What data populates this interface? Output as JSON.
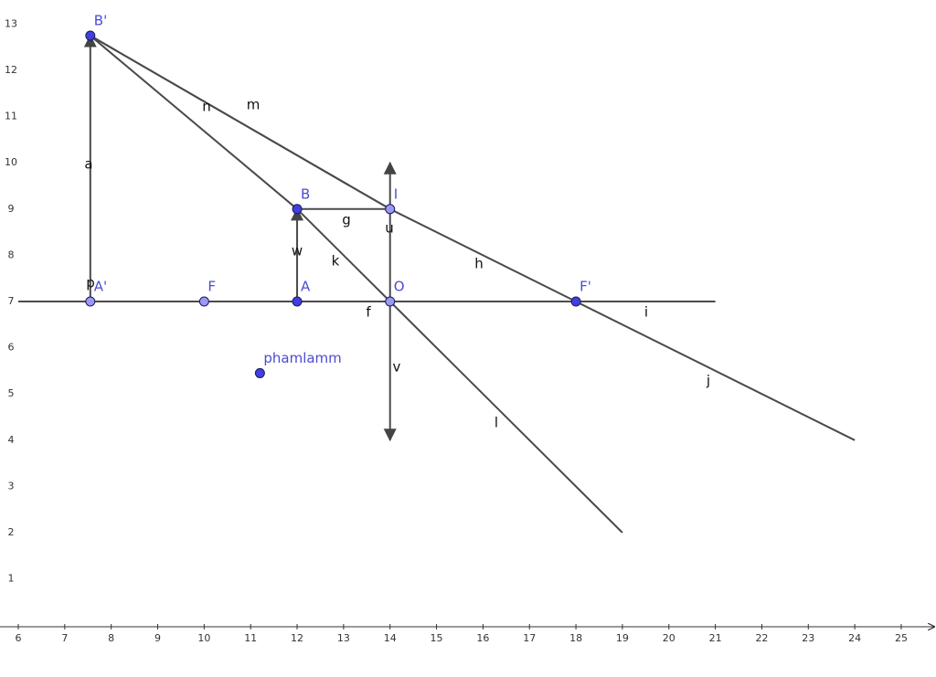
{
  "axes": {
    "xticks": [
      6,
      7,
      8,
      9,
      10,
      11,
      12,
      13,
      14,
      15,
      16,
      17,
      18,
      19,
      20,
      21,
      22,
      23,
      24,
      25
    ],
    "yticks": [
      1,
      2,
      3,
      4,
      5,
      6,
      7,
      8,
      9,
      10,
      11,
      12,
      13
    ]
  },
  "points": [
    {
      "label": "B'",
      "x": 7.55,
      "y": 12.75,
      "color": "#4040e0"
    },
    {
      "label": "A'",
      "x": 7.55,
      "y": 7,
      "color": "#9a9af5"
    },
    {
      "label": "F",
      "x": 10,
      "y": 7,
      "color": "#9a9af5"
    },
    {
      "label": "A",
      "x": 12,
      "y": 7,
      "color": "#4040e0"
    },
    {
      "label": "B",
      "x": 12,
      "y": 9,
      "color": "#4040e0"
    },
    {
      "label": "I",
      "x": 14,
      "y": 9,
      "color": "#9a9af5"
    },
    {
      "label": "O",
      "x": 14,
      "y": 7,
      "color": "#9a9af5"
    },
    {
      "label": "F'",
      "x": 18,
      "y": 7,
      "color": "#4040e0"
    },
    {
      "label": "phamlamm",
      "x": 11.2,
      "y": 5.45,
      "color": "#4040e0"
    }
  ],
  "segments": [
    {
      "label": "a",
      "from": [
        7.55,
        7
      ],
      "to": [
        7.55,
        12.75
      ],
      "arrow": true
    },
    {
      "label": "f",
      "from": [
        6,
        7
      ],
      "to": [
        14,
        7
      ]
    },
    {
      "label": "i",
      "from": [
        14,
        7
      ],
      "to": [
        21,
        7
      ]
    },
    {
      "label": "g",
      "from": [
        12,
        9
      ],
      "to": [
        14,
        9
      ]
    },
    {
      "label": "w",
      "from": [
        12,
        7
      ],
      "to": [
        12,
        9
      ],
      "arrow": true
    },
    {
      "label": "u",
      "from": [
        14,
        7
      ],
      "to": [
        14,
        10
      ],
      "arrow": true
    },
    {
      "label": "v",
      "from": [
        14,
        7
      ],
      "to": [
        14,
        4
      ],
      "arrow": true
    },
    {
      "label": "k",
      "from": [
        12,
        9
      ],
      "to": [
        14,
        7
      ]
    },
    {
      "label": "l",
      "from": [
        14,
        7
      ],
      "to": [
        19,
        2
      ]
    },
    {
      "label": "h",
      "from": [
        14,
        9
      ],
      "to": [
        18,
        7
      ]
    },
    {
      "label": "j",
      "from": [
        18,
        7
      ],
      "to": [
        24,
        4
      ]
    },
    {
      "label": "m",
      "from": [
        7.55,
        12.75
      ],
      "to": [
        14,
        9
      ]
    },
    {
      "label": "n",
      "from": [
        7.55,
        12.75
      ],
      "to": [
        14,
        9
      ]
    },
    {
      "from": [
        7.55,
        12.75
      ],
      "to": [
        12,
        9
      ]
    }
  ],
  "extra_labels": [
    "p"
  ]
}
